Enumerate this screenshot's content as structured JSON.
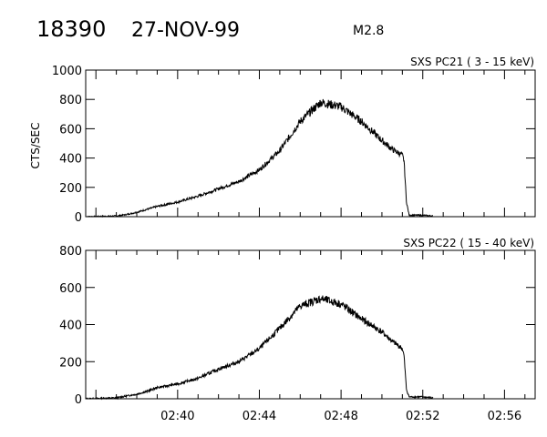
{
  "header": {
    "event_id": "18390",
    "date": "27-NOV-99",
    "flare_class": "M2.8"
  },
  "colors": {
    "background": "#ffffff",
    "foreground": "#000000"
  },
  "chart_data": [
    {
      "type": "line",
      "title": "SXS PC21  (  3 - 15 keV)",
      "ylabel": "CTS/SEC",
      "xlabel": "",
      "xlim": [
        "02:35:30",
        "02:57:30"
      ],
      "ylim": [
        0,
        1000
      ],
      "y_ticks": [
        0,
        200,
        400,
        600,
        800,
        1000
      ],
      "x_ticks": [
        "02:40",
        "02:44",
        "02:48",
        "02:52",
        "02:56"
      ],
      "x_tick_labels_shown": false,
      "series": [
        {
          "x": [
            "02:35:30",
            "02:37:00",
            "02:37:30",
            "02:38:00",
            "02:38:30",
            "02:39:00",
            "02:40:00",
            "02:41:00",
            "02:42:00",
            "02:43:00",
            "02:44:00",
            "02:45:00",
            "02:46:00",
            "02:47:00",
            "02:48:00",
            "02:49:00",
            "02:50:00",
            "02:50:30",
            "02:51:00",
            "02:51:05",
            "02:51:12",
            "02:51:20",
            "02:52:00",
            "02:52:30"
          ],
          "values": [
            0,
            5,
            15,
            30,
            50,
            70,
            100,
            140,
            190,
            240,
            320,
            450,
            650,
            780,
            750,
            650,
            520,
            460,
            420,
            380,
            100,
            10,
            10,
            5
          ]
        }
      ]
    },
    {
      "type": "line",
      "title": "SXS PC22  ( 15 - 40 keV)",
      "ylabel": "",
      "xlabel": "",
      "xlim": [
        "02:35:30",
        "02:57:30"
      ],
      "ylim": [
        0,
        800
      ],
      "y_ticks": [
        0,
        200,
        400,
        600,
        800
      ],
      "x_ticks": [
        "02:40",
        "02:44",
        "02:48",
        "02:52",
        "02:56"
      ],
      "x_tick_labels_shown": true,
      "series": [
        {
          "x": [
            "02:35:30",
            "02:37:00",
            "02:37:30",
            "02:38:00",
            "02:38:30",
            "02:39:00",
            "02:40:00",
            "02:41:00",
            "02:42:00",
            "02:43:00",
            "02:44:00",
            "02:45:00",
            "02:46:00",
            "02:47:00",
            "02:48:00",
            "02:49:00",
            "02:50:00",
            "02:50:30",
            "02:51:00",
            "02:51:05",
            "02:51:12",
            "02:51:20",
            "02:52:00",
            "02:52:30"
          ],
          "values": [
            0,
            5,
            15,
            25,
            40,
            60,
            80,
            110,
            160,
            200,
            270,
            380,
            500,
            540,
            510,
            430,
            360,
            310,
            270,
            230,
            50,
            10,
            10,
            5
          ]
        }
      ]
    }
  ]
}
